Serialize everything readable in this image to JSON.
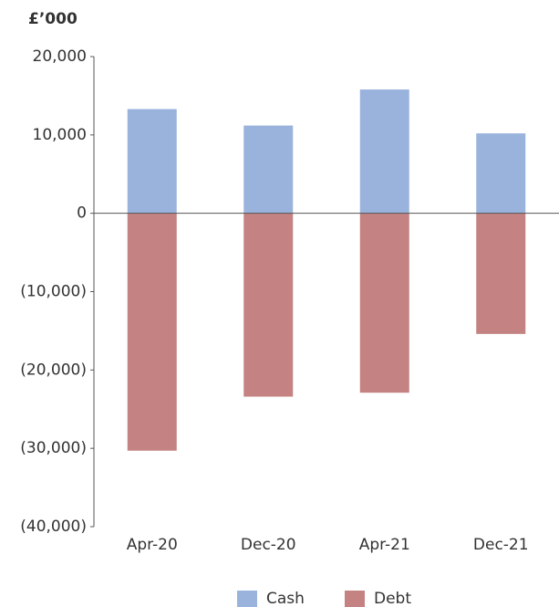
{
  "chart_data": {
    "type": "stacked-bar",
    "y_label": "£’000",
    "categories": [
      "Apr-20",
      "Dec-20",
      "Apr-21",
      "Dec-21"
    ],
    "series": [
      {
        "name": "Cash",
        "color": "#9ab3dc",
        "values": [
          13300,
          11200,
          15800,
          10200
        ]
      },
      {
        "name": "Debt",
        "color": "#c48282",
        "values": [
          -30300,
          -23400,
          -22900,
          -15400
        ]
      }
    ],
    "ylim": [
      -40000,
      20000
    ],
    "yticks": [
      {
        "value": -40000,
        "label": "(40,000)"
      },
      {
        "value": -30000,
        "label": "(30,000)"
      },
      {
        "value": -20000,
        "label": "(20,000)"
      },
      {
        "value": -10000,
        "label": "(10,000)"
      },
      0,
      {
        "value": 10000,
        "label": "10,000"
      },
      {
        "value": 20000,
        "label": "20,000"
      }
    ],
    "grid": false,
    "legend": "bottom"
  }
}
